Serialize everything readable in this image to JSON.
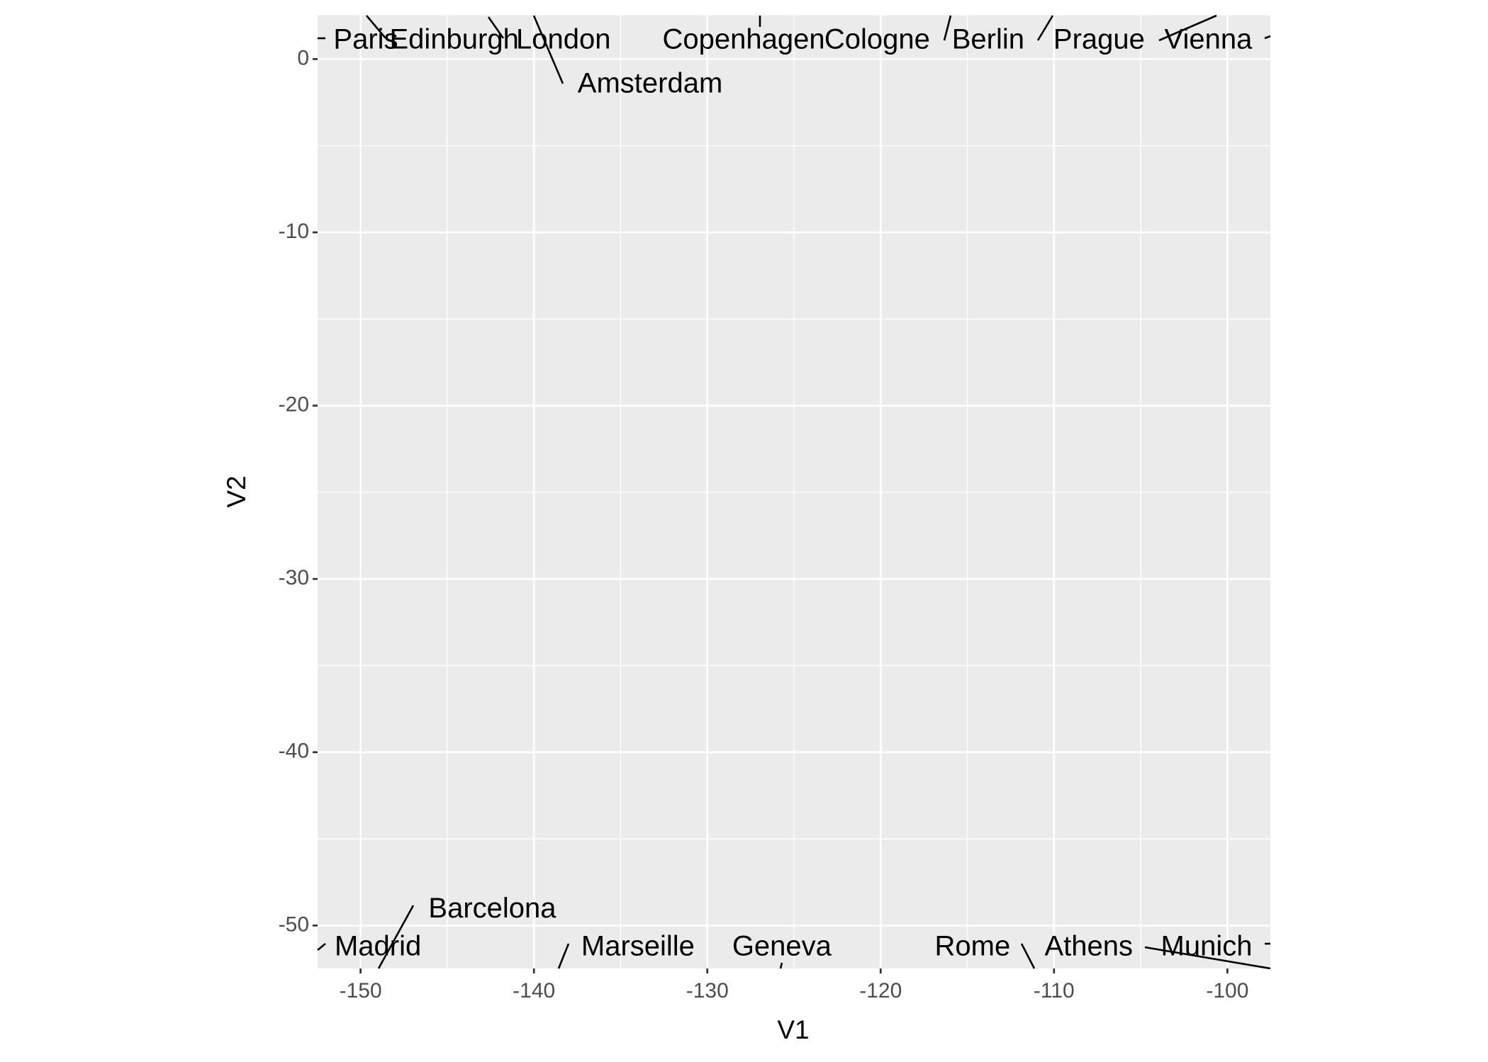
{
  "chart_data": {
    "type": "text",
    "x_label": "V1",
    "y_label": "V2",
    "labels": [
      "Paris",
      "Edinburgh",
      "London",
      "Amsterdam",
      "Copenhagen",
      "Cologne",
      "Berlin",
      "Prague",
      "Vienna",
      "Barcelona",
      "Madrid",
      "Marseille",
      "Geneva",
      "Rome",
      "Athens",
      "Munich"
    ],
    "x": [
      -149.7,
      -144.6,
      -138.3,
      -133.3,
      -127.9,
      -120.2,
      -113.8,
      -107.4,
      -101.1,
      -142.4,
      -149.0,
      -134.0,
      -125.7,
      -114.7,
      -108.0,
      -101.2
    ],
    "y": [
      1.05,
      1.05,
      1.05,
      -1.5,
      1.05,
      1.05,
      1.05,
      1.05,
      1.05,
      -49.1,
      -51.3,
      -51.3,
      -51.3,
      -51.3,
      -51.3,
      -51.3
    ],
    "color": "#000000",
    "xlim": [
      -152.48,
      -97.52
    ],
    "ylim": [
      -52.48,
      2.53
    ],
    "xticks": [
      -150,
      -140,
      -130,
      -120,
      -110,
      -100
    ],
    "yticks": [
      0,
      -10,
      -20,
      -30,
      -40,
      -50
    ],
    "grid": true
  }
}
